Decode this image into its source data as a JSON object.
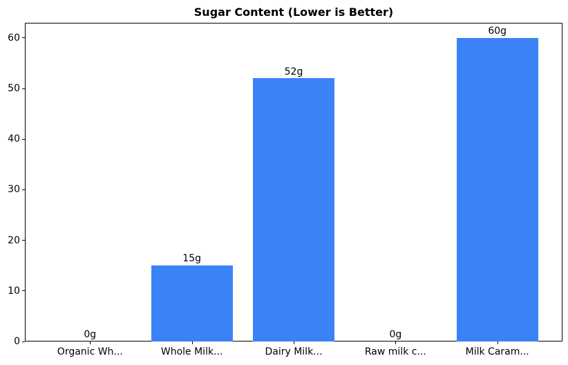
{
  "chart_data": {
    "type": "bar",
    "title": "Sugar Content (Lower is Better)",
    "categories": [
      "Organic Wh...",
      "Whole Milk...",
      "Dairy Milk...",
      "Raw milk c...",
      "Milk Caram..."
    ],
    "values": [
      0,
      15,
      52,
      0,
      60
    ],
    "bar_labels": [
      "0g",
      "15g",
      "52g",
      "0g",
      "60g"
    ],
    "value_unit": "g",
    "yticks": [
      0,
      10,
      20,
      30,
      40,
      50,
      60
    ],
    "ylim": [
      0,
      63
    ],
    "xlabel": "",
    "ylabel": "",
    "grid": false,
    "legend": "none",
    "bar_color": "#3b82f6",
    "text_color": "#000000",
    "background_color": "#ffffff"
  }
}
